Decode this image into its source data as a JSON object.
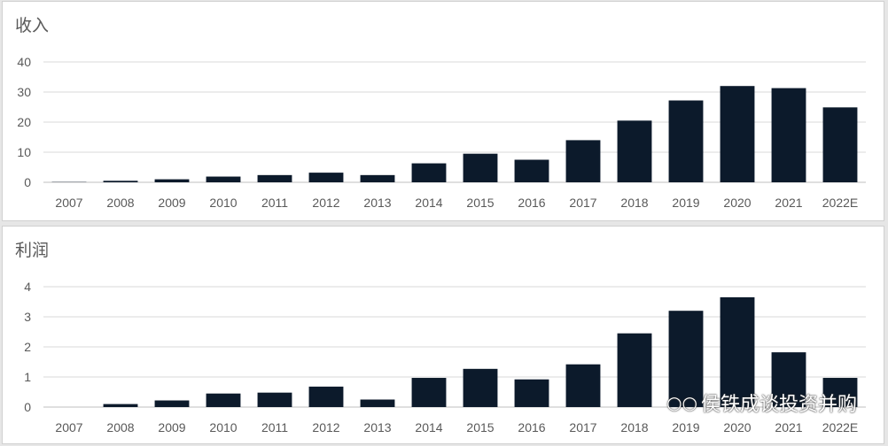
{
  "chart_data": [
    {
      "type": "bar",
      "title": "收入",
      "categories": [
        "2007",
        "2008",
        "2009",
        "2010",
        "2011",
        "2012",
        "2013",
        "2014",
        "2015",
        "2016",
        "2017",
        "2018",
        "2019",
        "2020",
        "2021",
        "2022E"
      ],
      "values": [
        0.1,
        0.5,
        1.0,
        1.9,
        2.4,
        3.2,
        2.4,
        6.3,
        9.5,
        7.5,
        14.0,
        20.5,
        27.2,
        32.0,
        31.3,
        24.9
      ],
      "ylim": [
        0,
        40
      ],
      "yticks": [
        0,
        10,
        20,
        30,
        40
      ],
      "grid": true,
      "bar_color": "#0c1a2b"
    },
    {
      "type": "bar",
      "title": "利润",
      "categories": [
        "2007",
        "2008",
        "2009",
        "2010",
        "2011",
        "2012",
        "2013",
        "2014",
        "2015",
        "2016",
        "2017",
        "2018",
        "2019",
        "2020",
        "2021",
        "2022E"
      ],
      "values": [
        0.0,
        0.1,
        0.22,
        0.45,
        0.48,
        0.68,
        0.25,
        0.97,
        1.27,
        0.92,
        1.42,
        2.45,
        3.2,
        3.65,
        1.82,
        0.97
      ],
      "ylim": [
        0,
        4
      ],
      "yticks": [
        0,
        1,
        2,
        3,
        4
      ],
      "grid": true,
      "bar_color": "#0c1a2b"
    }
  ],
  "watermark": {
    "text": "侯铁成谈投资并购",
    "icon": "wechat-icon"
  }
}
